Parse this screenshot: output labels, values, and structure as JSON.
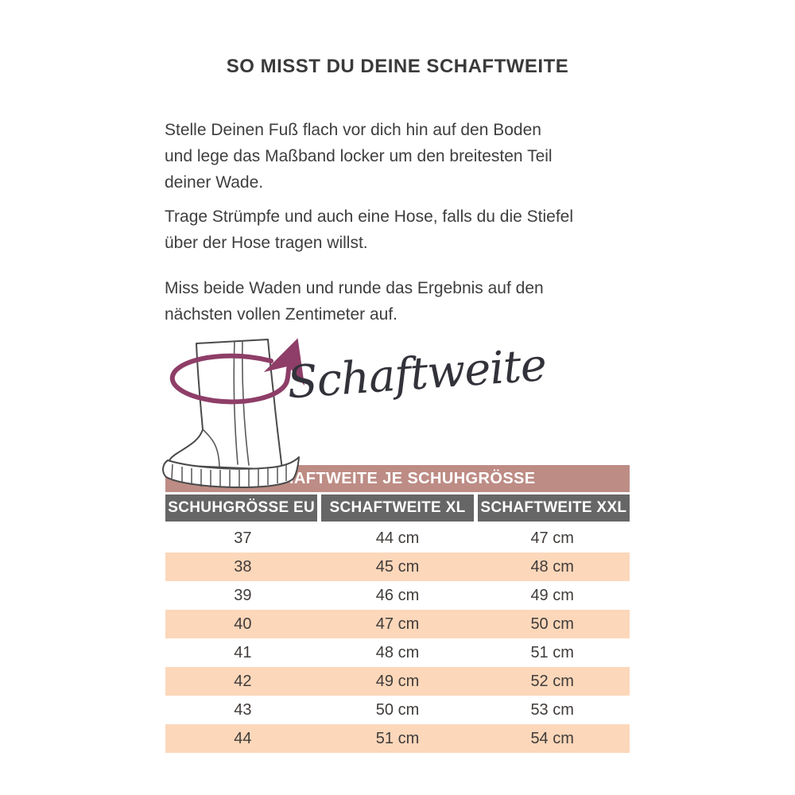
{
  "colors": {
    "accent_rose": "#bd8c85",
    "header_gray": "#666666",
    "stripe_peach": "#fcd7ba",
    "arrow_plum": "#8e3e68",
    "text": "#3d3d3d"
  },
  "page": {
    "title": "SO MISST DU DEINE SCHAFTWEITE",
    "paragraphs": [
      [
        "Stelle Deinen Fuß flach vor dich hin auf den Boden",
        "und lege das Maßband locker um den breitesten Teil",
        "deiner Wade."
      ],
      [
        "Trage Strümpfe und auch eine Hose, falls du die Stiefel",
        "über der Hose tragen willst."
      ],
      [
        "Miss beide Waden und runde das Ergebnis auf den",
        "nächsten vollen Zentimeter auf."
      ]
    ]
  },
  "illustration": {
    "label": "Schaftweite",
    "boot_icon": "tall-boot-outline-icon",
    "arrow_icon": "measuring-loop-arrow-icon"
  },
  "table": {
    "title": "SCHAFTWEITE JE SCHUHGRÖSSE",
    "columns": [
      "SCHUHGRÖSSE EU",
      "SCHAFTWEITE XL",
      "SCHAFTWEITE XXL"
    ],
    "rows": [
      [
        "37",
        "44 cm",
        "47 cm"
      ],
      [
        "38",
        "45 cm",
        "48 cm"
      ],
      [
        "39",
        "46 cm",
        "49 cm"
      ],
      [
        "40",
        "47 cm",
        "50 cm"
      ],
      [
        "41",
        "48 cm",
        "51 cm"
      ],
      [
        "42",
        "49 cm",
        "52 cm"
      ],
      [
        "43",
        "50 cm",
        "53 cm"
      ],
      [
        "44",
        "51 cm",
        "54 cm"
      ]
    ]
  }
}
